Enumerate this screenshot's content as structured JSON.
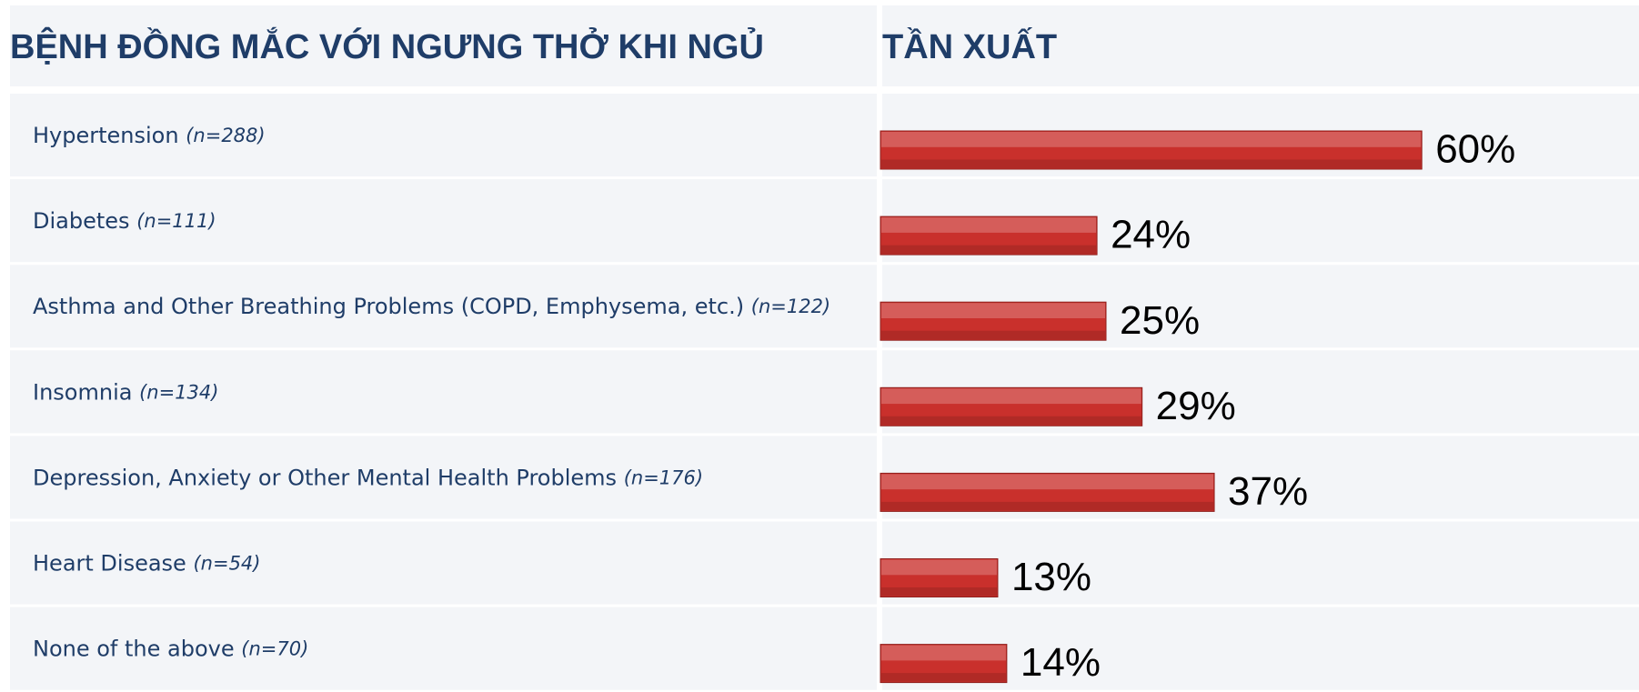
{
  "chart_data": {
    "type": "bar",
    "orientation": "horizontal",
    "column_headers": [
      "BỆNH ĐỒNG MẮC VỚI NGƯNG THỞ KHI NGỦ",
      "TẦN XUẤT"
    ],
    "categories": [
      "Hypertension",
      "Diabetes",
      "Asthma and Other Breathing Problems (COPD, Emphysema, etc.)",
      "Insomnia",
      "Depression, Anxiety or Other Mental Health Problems",
      "Heart Disease",
      "None of the above"
    ],
    "category_notes": [
      "(n=288)",
      "(n=111)",
      "(n=122)",
      "(n=134)",
      "(n=176)",
      "(n=54)",
      "(n=70)"
    ],
    "values": [
      60,
      24,
      25,
      29,
      37,
      13,
      14
    ],
    "value_labels": [
      "60%",
      "24%",
      "25%",
      "29%",
      "37%",
      "13%",
      "14%"
    ],
    "xlim": [
      0,
      100
    ],
    "color": "#c9302c"
  }
}
